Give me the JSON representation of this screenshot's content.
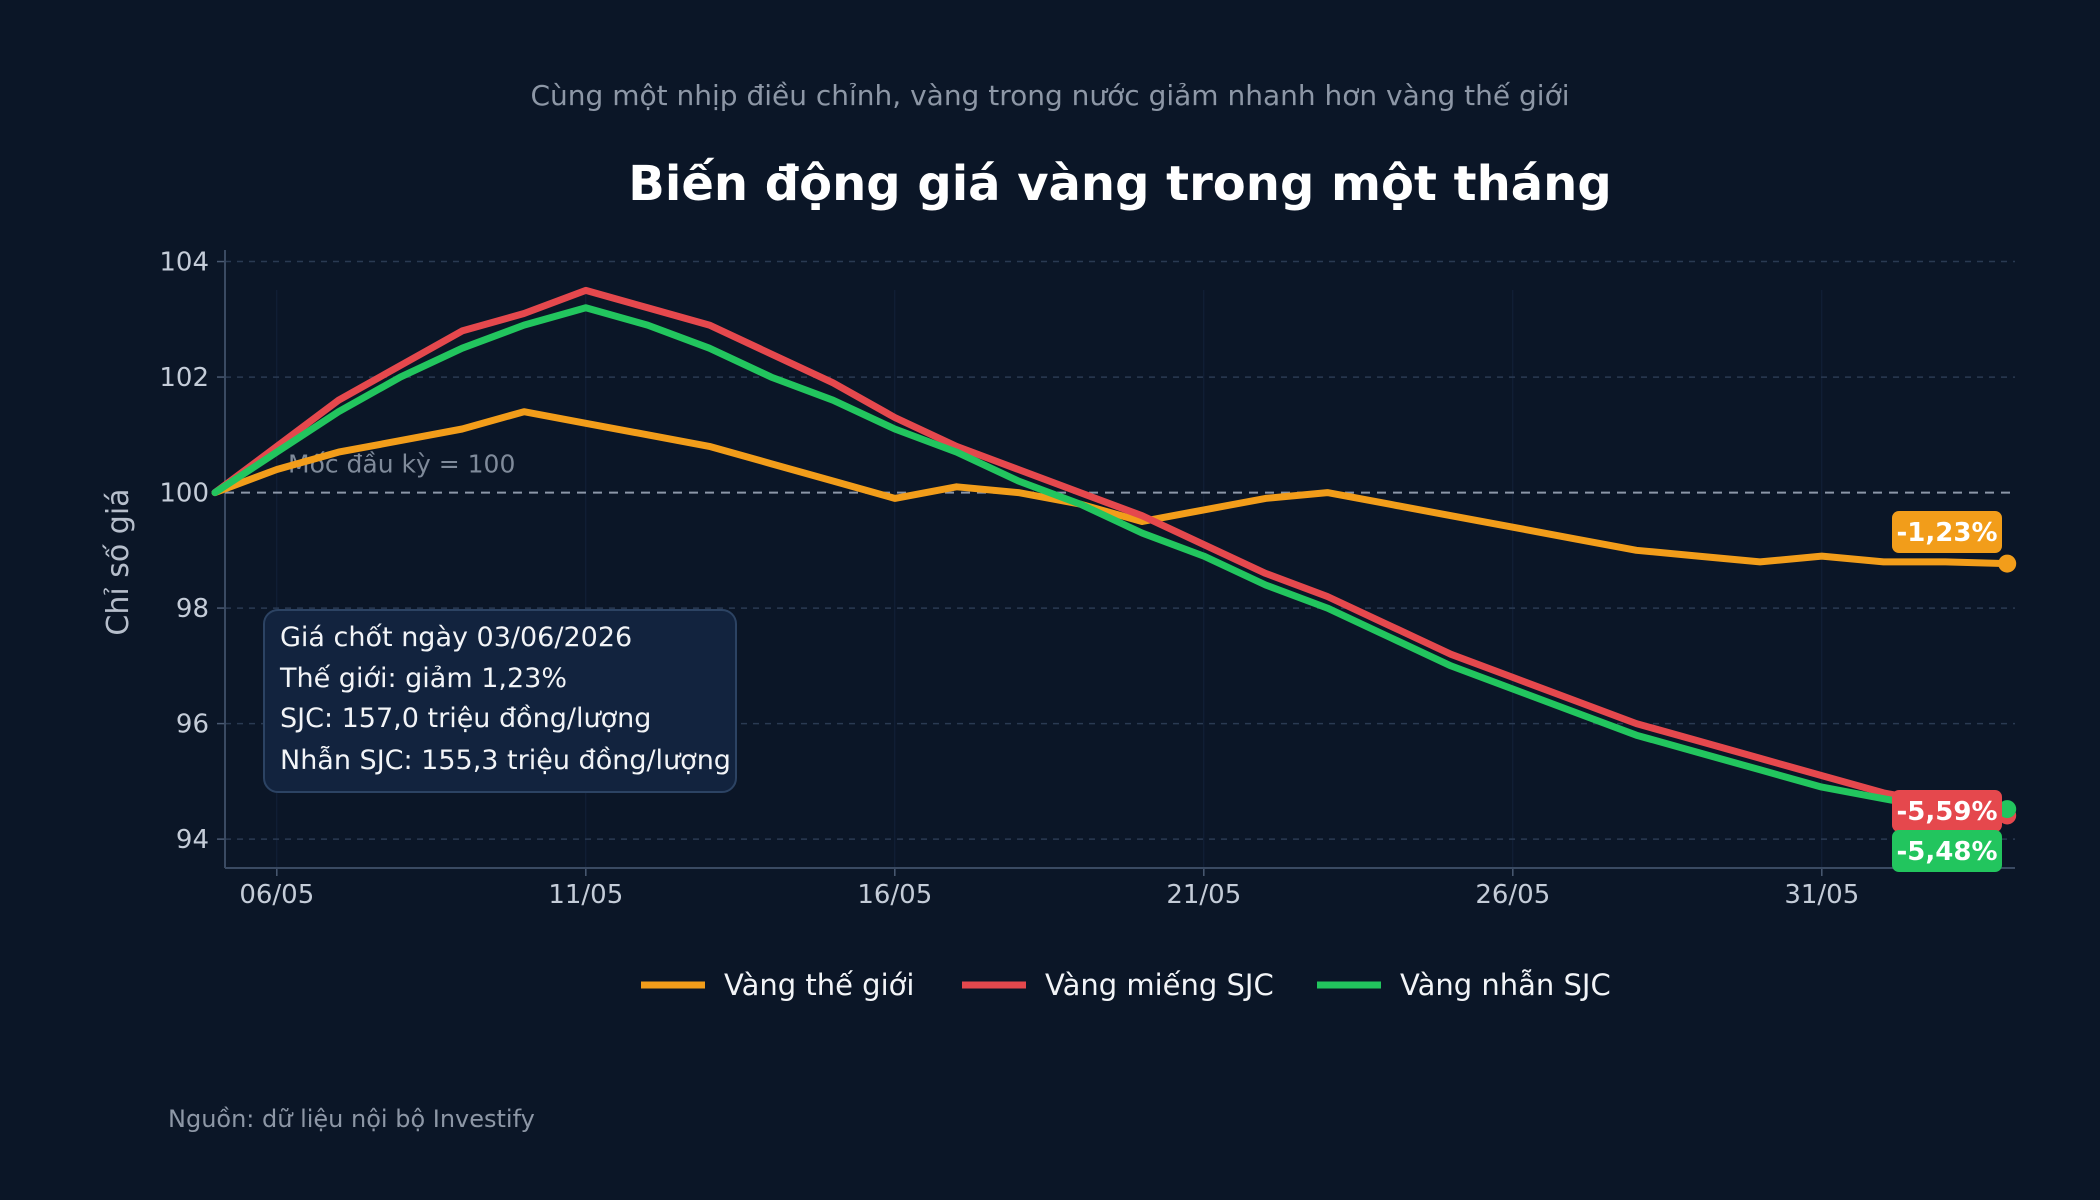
{
  "chart_data": {
    "type": "line",
    "subtitle": "Cùng một nhịp điều chỉnh, vàng trong nước giảm nhanh hơn vàng thế giới",
    "title": "Biến động giá vàng trong một tháng",
    "ylabel": "Chỉ số giá",
    "xlabel": "",
    "x_ticks": [
      "06/05",
      "11/05",
      "16/05",
      "21/05",
      "26/05",
      "31/05"
    ],
    "y_ticks": [
      94,
      96,
      98,
      100,
      102,
      104
    ],
    "ylim": [
      93.5,
      104.2
    ],
    "xlim": [
      "05/05",
      "03/06"
    ],
    "grid": "horizontal-dashed",
    "legend_position": "bottom",
    "x": [
      "05/05",
      "06/05",
      "07/05",
      "08/05",
      "09/05",
      "10/05",
      "11/05",
      "12/05",
      "13/05",
      "14/05",
      "15/05",
      "16/05",
      "17/05",
      "18/05",
      "19/05",
      "20/05",
      "21/05",
      "22/05",
      "23/05",
      "24/05",
      "25/05",
      "26/05",
      "27/05",
      "28/05",
      "29/05",
      "30/05",
      "31/05",
      "01/06",
      "02/06",
      "03/06"
    ],
    "series": [
      {
        "name": "Vàng thế giới",
        "color": "#f29d1a",
        "end_label": "-1,23%",
        "values": [
          100.0,
          100.4,
          100.7,
          100.9,
          101.1,
          101.4,
          101.2,
          101.0,
          100.8,
          100.5,
          100.2,
          99.9,
          100.1,
          100.0,
          99.8,
          99.5,
          99.7,
          99.9,
          100.0,
          99.8,
          99.6,
          99.4,
          99.2,
          99.0,
          98.9,
          98.8,
          98.9,
          98.8,
          98.8,
          98.77
        ]
      },
      {
        "name": "Vàng miếng SJC",
        "color": "#e5484d",
        "end_label": "-5,59%",
        "values": [
          100.0,
          100.8,
          101.6,
          102.2,
          102.8,
          103.1,
          103.5,
          103.2,
          102.9,
          102.4,
          101.9,
          101.3,
          100.8,
          100.4,
          100.0,
          99.6,
          99.1,
          98.6,
          98.2,
          97.7,
          97.2,
          96.8,
          96.4,
          96.0,
          95.7,
          95.4,
          95.1,
          94.8,
          94.6,
          94.41
        ]
      },
      {
        "name": "Vàng nhẫn SJC",
        "color": "#22c55e",
        "end_label": "-5,48%",
        "values": [
          100.0,
          100.7,
          101.4,
          102.0,
          102.5,
          102.9,
          103.2,
          102.9,
          102.5,
          102.0,
          101.6,
          101.1,
          100.7,
          100.2,
          99.8,
          99.3,
          98.9,
          98.4,
          98.0,
          97.5,
          97.0,
          96.6,
          96.2,
          95.8,
          95.5,
          95.2,
          94.9,
          94.7,
          94.5,
          94.52
        ]
      }
    ],
    "reference_line": {
      "value": 100,
      "label": "Mốc đầu kỳ = 100"
    },
    "annotation_box": {
      "lines": [
        "Giá chốt ngày 03/06/2026",
        "Thế giới: giảm 1,23%",
        "SJC: 157,0 triệu đồng/lượng",
        "Nhẫn SJC: 155,3 triệu đồng/lượng"
      ]
    },
    "source": "Nguồn: dữ liệu nội bộ Investify"
  }
}
